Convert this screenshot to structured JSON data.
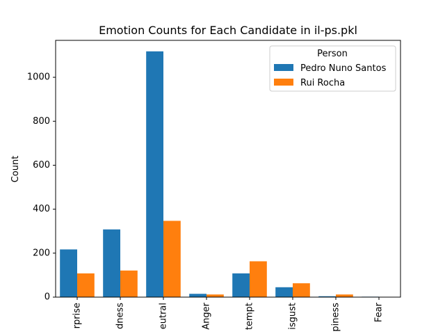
{
  "chart_data": {
    "type": "bar",
    "title": "Emotion Counts for Each Candidate in il-ps.pkl",
    "xlabel": "",
    "ylabel": "Count",
    "categories": [
      "Surprise",
      "Sadness",
      "Neutral",
      "Anger",
      "Contempt",
      "Disgust",
      "Happiness",
      "Fear"
    ],
    "category_labels": [
      "rprise",
      "dness",
      "eutral",
      "Anger",
      "tempt",
      "isgust",
      "piness",
      "Fear"
    ],
    "series": [
      {
        "name": "Pedro Nuno Santos",
        "color": "#1f77b4",
        "values": [
          217,
          308,
          1118,
          15,
          108,
          45,
          4,
          2
        ]
      },
      {
        "name": "Rui Rocha",
        "color": "#ff7f0e",
        "values": [
          108,
          121,
          347,
          12,
          163,
          63,
          12,
          0
        ]
      }
    ],
    "ylim": [
      0,
      1168
    ],
    "yticks": [
      0,
      200,
      400,
      600,
      800,
      1000
    ],
    "legend": {
      "title": "Person",
      "placement": "top-right"
    },
    "grid": false
  }
}
